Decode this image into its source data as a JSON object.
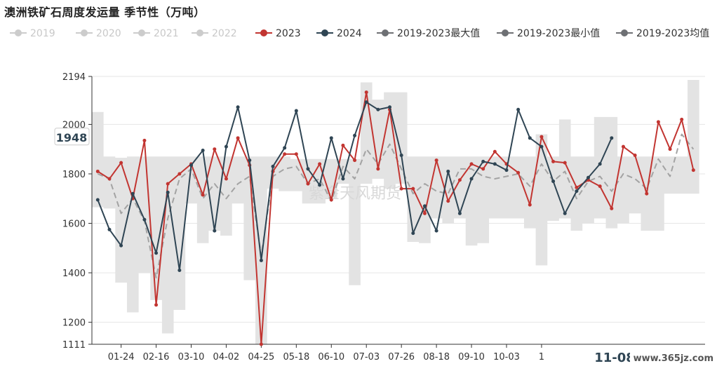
{
  "title": "澳洲铁矿石周度发运量 季节性（万吨）",
  "watermark": "紫金天风期货",
  "site_mark": "www.365jz.com",
  "colors": {
    "band": "#e3e3e3",
    "avg": "#a3a3a3",
    "s2023": "#c23531",
    "s2024": "#2f4554",
    "dim": "#cccccc",
    "grid": "#e6e6e6",
    "axis": "#333333",
    "minmax_icon": "#6e7074"
  },
  "chart_data": {
    "type": "line",
    "ylim": [
      1111,
      2194
    ],
    "ytick_values": [
      1111,
      1200,
      1400,
      1600,
      1800,
      2000,
      2194
    ],
    "ytick_labels": [
      "1111",
      "1200",
      "1400",
      "1600",
      "1800",
      "2000",
      "2194"
    ],
    "xtick_labels": [
      "01-24",
      "02-16",
      "03-10",
      "04-02",
      "04-25",
      "05-18",
      "06-10",
      "07-03",
      "07-26",
      "08-18",
      "09-10",
      "10-03",
      "1"
    ],
    "x_weeks": 53,
    "legend": [
      {
        "name": "2019",
        "active": false
      },
      {
        "name": "2020",
        "active": false
      },
      {
        "name": "2021",
        "active": false
      },
      {
        "name": "2022",
        "active": false
      },
      {
        "name": "2023",
        "active": true,
        "color": "#c23531"
      },
      {
        "name": "2024",
        "active": true,
        "color": "#2f4554"
      },
      {
        "name": "2019-2023最大值",
        "active": true,
        "color": "#6e7074"
      },
      {
        "name": "2019-2023最小值",
        "active": true,
        "color": "#6e7074"
      },
      {
        "name": "2019-2023均值",
        "active": true,
        "color": "#6e7074"
      }
    ],
    "y_pointer": {
      "value": 1948,
      "label": "1948"
    },
    "x_pointer": {
      "label": "11-08"
    },
    "series": [
      {
        "name": "2023",
        "values": [
          1810,
          1780,
          1845,
          1700,
          1935,
          1270,
          1760,
          1800,
          1840,
          1715,
          1900,
          1780,
          1945,
          1835,
          1111,
          1810,
          1880,
          1880,
          1760,
          1840,
          1695,
          1915,
          1855,
          2130,
          1820,
          2060,
          1740,
          1740,
          1640,
          1855,
          1690,
          1775,
          1840,
          1820,
          1890,
          1840,
          1805,
          1675,
          1950,
          1850,
          1845,
          1745,
          1775,
          1750,
          1660,
          1910,
          1875,
          1720,
          2010,
          1900,
          2020,
          1815
        ]
      },
      {
        "name": "2024",
        "values": [
          1695,
          1575,
          1510,
          1720,
          1615,
          1480,
          1725,
          1410,
          1835,
          1895,
          1570,
          1910,
          2070,
          1855,
          1450,
          1830,
          1905,
          2055,
          1820,
          1755,
          1945,
          1780,
          1955,
          2090,
          2060,
          2070,
          1875,
          1560,
          1670,
          1570,
          1810,
          1640,
          1780,
          1850,
          1840,
          1815,
          2060,
          1945,
          1910,
          1770,
          1640,
          1730,
          1785,
          1840,
          1945
        ]
      },
      {
        "name": "2019-2023最大值",
        "values": [
          2050,
          1870,
          1865,
          1870,
          1870,
          1870,
          1870,
          1870,
          1870,
          1870,
          1870,
          1870,
          1870,
          1870,
          1870,
          1870,
          1870,
          1860,
          1860,
          1860,
          1860,
          1860,
          1860,
          2170,
          2100,
          2130,
          2130,
          1870,
          1870,
          1870,
          1870,
          1870,
          1870,
          1870,
          1870,
          1870,
          1870,
          1870,
          1960,
          1870,
          2020,
          1870,
          1870,
          2030,
          2030,
          1870,
          1870,
          1870,
          1870,
          1870,
          1870,
          2180
        ]
      },
      {
        "name": "2019-2023最小值",
        "values": [
          1665,
          1660,
          1360,
          1240,
          1400,
          1290,
          1155,
          1250,
          1680,
          1520,
          1570,
          1550,
          1680,
          1370,
          1111,
          1740,
          1730,
          1730,
          1680,
          1680,
          1700,
          1760,
          1350,
          1760,
          1780,
          1740,
          1760,
          1525,
          1520,
          1620,
          1600,
          1620,
          1510,
          1520,
          1620,
          1620,
          1620,
          1580,
          1430,
          1610,
          1620,
          1570,
          1600,
          1620,
          1580,
          1600,
          1640,
          1570,
          1570,
          1720,
          1720,
          1720
        ]
      },
      {
        "name": "2019-2023均值",
        "values": [
          1800,
          1780,
          1640,
          1700,
          1610,
          1380,
          1620,
          1780,
          1820,
          1700,
          1760,
          1700,
          1760,
          1790,
          1470,
          1790,
          1820,
          1830,
          1760,
          1780,
          1690,
          1830,
          1780,
          1900,
          1840,
          1920,
          1820,
          1720,
          1760,
          1730,
          1720,
          1820,
          1820,
          1790,
          1780,
          1790,
          1800,
          1750,
          1840,
          1770,
          1810,
          1700,
          1770,
          1790,
          1730,
          1800,
          1780,
          1740,
          1860,
          1790,
          1960,
          1900
        ]
      }
    ]
  }
}
